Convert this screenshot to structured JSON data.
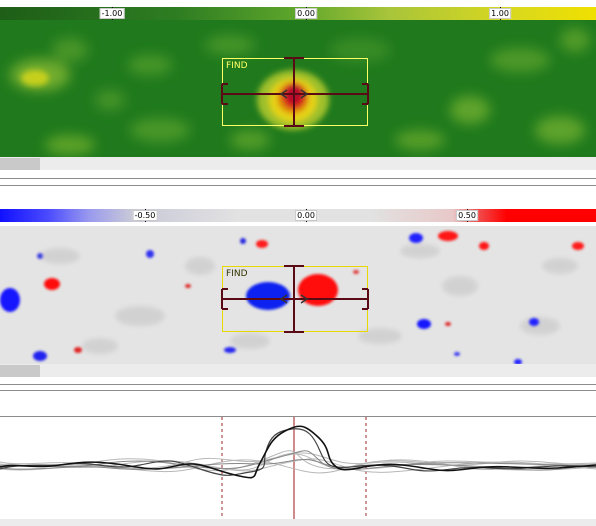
{
  "top_panel": {
    "name": "amplitude-panel",
    "scale_ticks": [
      "-1.00",
      "0.00",
      "1.00"
    ],
    "find_label": "FIND"
  },
  "middle_panel": {
    "name": "difference-panel",
    "scale_ticks": [
      "-0.50",
      "0.00",
      "0.50"
    ],
    "find_label": "FIND"
  },
  "colors": {
    "green_map": "#1f7a1c",
    "grey_map": "#e2e2e2",
    "find_box": "#ffff66",
    "crosshair": "#5a0a14",
    "profile_marker": "#9b2a2a"
  }
}
